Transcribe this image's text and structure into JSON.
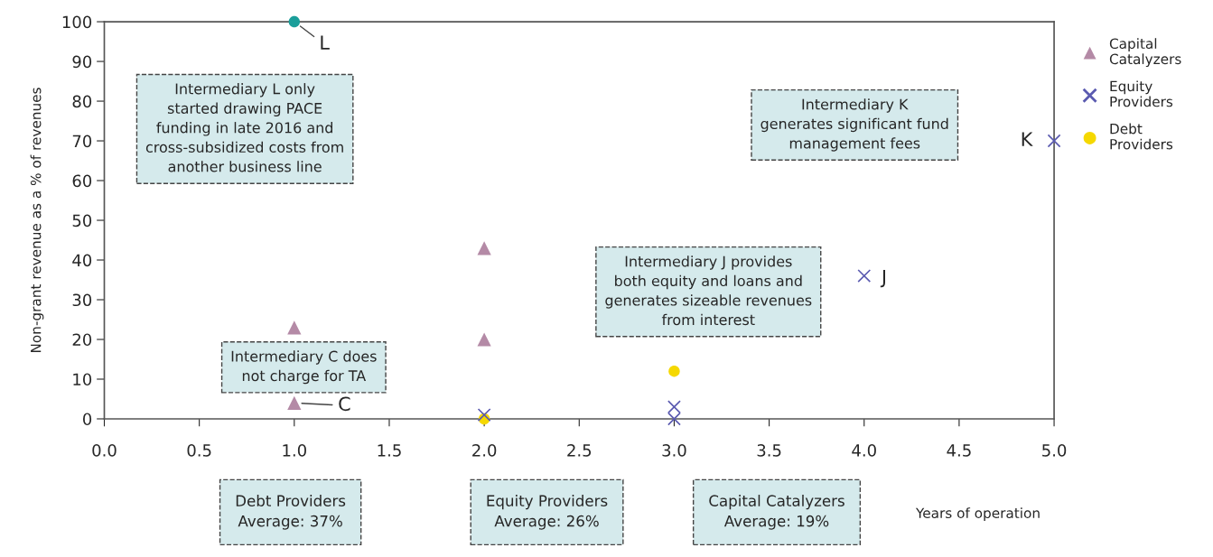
{
  "chart_data": {
    "type": "scatter",
    "xlabel": "Years of operation",
    "ylabel": "Non-grant revenue as a % of revenues",
    "xlim": [
      0,
      5
    ],
    "ylim": [
      0,
      100
    ],
    "xticks": [
      {
        "value": 0,
        "label": "0.0"
      },
      {
        "value": 0.5,
        "label": "0.5"
      },
      {
        "value": 1,
        "label": "1.0"
      },
      {
        "value": 1.5,
        "label": "1.5"
      },
      {
        "value": 2,
        "label": "2.0"
      },
      {
        "value": 2.5,
        "label": "2.5"
      },
      {
        "value": 3,
        "label": "3.0"
      },
      {
        "value": 3.5,
        "label": "3.5"
      },
      {
        "value": 4,
        "label": "4.0"
      },
      {
        "value": 4.5,
        "label": "4.5"
      },
      {
        "value": 5,
        "label": "5.0"
      }
    ],
    "yticks": [
      0,
      10,
      20,
      30,
      40,
      50,
      60,
      70,
      80,
      90,
      100
    ],
    "grid": false,
    "legend": "right",
    "series": [
      {
        "name": "Capital Catalyzers",
        "color": "#b48aa6",
        "marker": "triangle",
        "x": [
          1,
          1,
          2,
          2
        ],
        "values": [
          23,
          4,
          43,
          20
        ]
      },
      {
        "name": "Equity Providers",
        "color": "#5a5ab0",
        "marker": "cross",
        "x": [
          2,
          3,
          3,
          4,
          5
        ],
        "values": [
          1,
          3,
          0,
          36,
          70
        ]
      },
      {
        "name": "Debt Providers",
        "color": "#f5d800",
        "marker": "circle",
        "x": [
          2,
          3
        ],
        "values": [
          0,
          12
        ]
      },
      {
        "color": "#1a9e9a",
        "marker": "circle",
        "x": [
          1
        ],
        "values": [
          100
        ]
      }
    ],
    "annotations": [
      "Intermediary L only\nstarted drawing PACE\nfunding in late 2016 and\ncross-subsidized costs from\nanother business line",
      {
        "text": "L",
        "x": 1,
        "y": 100
      },
      "Intermediary K\ngenerates significant fund\nmanagement fees",
      {
        "text": "K",
        "x": 5,
        "y": 70
      },
      "Intermediary J provides\nboth equity and loans and\ngenerates sizeable revenues\nfrom interest",
      {
        "text": "J",
        "x": 4,
        "y": 36
      },
      "Intermediary C does\nnot charge for TA",
      {
        "text": "C",
        "x": 1,
        "y": 4
      },
      "Debt Providers\nAverage: 37%",
      "Equity Providers\nAverage: 26%",
      "Capital Catalyzers\nAverage: 19%"
    ]
  }
}
